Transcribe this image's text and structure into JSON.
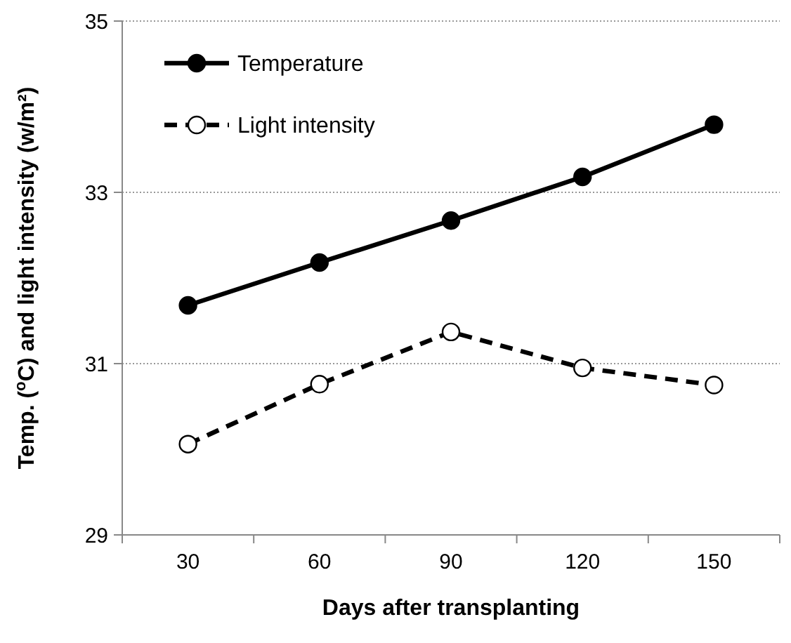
{
  "chart_data": {
    "type": "line",
    "xlabel": "Days after transplanting",
    "ylabel": "Temp. ($^{o}$C) and light intensity (w/m²)",
    "categories": [
      "30",
      "60",
      "90",
      "120",
      "150"
    ],
    "ylim": [
      29,
      35
    ],
    "yticks": [
      29,
      31,
      33,
      35
    ],
    "grid": "y",
    "legend": "top left",
    "series": [
      {
        "name": "Temperature",
        "color": "#000000",
        "values": [
          31.68,
          32.18,
          32.67,
          33.18,
          33.79
        ],
        "marker": "circle",
        "line_style": "solid"
      },
      {
        "name": "Light intensity",
        "color": "#000000",
        "values": [
          30.06,
          30.76,
          31.37,
          30.95,
          30.75
        ],
        "marker": "circle",
        "line_style": "dashed"
      }
    ]
  }
}
